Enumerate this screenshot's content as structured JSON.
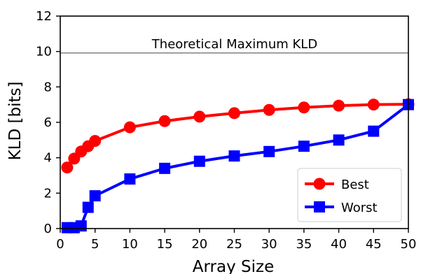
{
  "chart_data": {
    "type": "line",
    "xlabel": "Array Size",
    "ylabel": "KLD [bits]",
    "xlim": [
      0,
      50
    ],
    "ylim": [
      0,
      12
    ],
    "xticks": [
      0,
      5,
      10,
      15,
      20,
      25,
      30,
      35,
      40,
      45,
      50
    ],
    "yticks": [
      0,
      2,
      4,
      6,
      8,
      10,
      12
    ],
    "grid": false,
    "legend_position": "bottom-right",
    "reference_line": {
      "y": 9.92,
      "label": "Theoretical Maximum KLD",
      "color": "#808080"
    },
    "series": [
      {
        "name": "Best",
        "color": "#ff0000",
        "marker": "circle",
        "x": [
          1,
          2,
          3,
          4,
          5,
          10,
          15,
          20,
          25,
          30,
          35,
          40,
          45,
          50
        ],
        "y": [
          3.45,
          3.95,
          4.35,
          4.65,
          4.95,
          5.72,
          6.07,
          6.32,
          6.52,
          6.7,
          6.84,
          6.94,
          7.0,
          7.02
        ]
      },
      {
        "name": "Worst",
        "color": "#0000ff",
        "marker": "square",
        "x": [
          1,
          2,
          3,
          4,
          5,
          10,
          15,
          20,
          25,
          30,
          35,
          40,
          45,
          50
        ],
        "y": [
          0.05,
          0.05,
          0.15,
          1.2,
          1.85,
          2.8,
          3.4,
          3.8,
          4.1,
          4.35,
          4.65,
          5.0,
          5.5,
          7.0
        ]
      }
    ]
  }
}
